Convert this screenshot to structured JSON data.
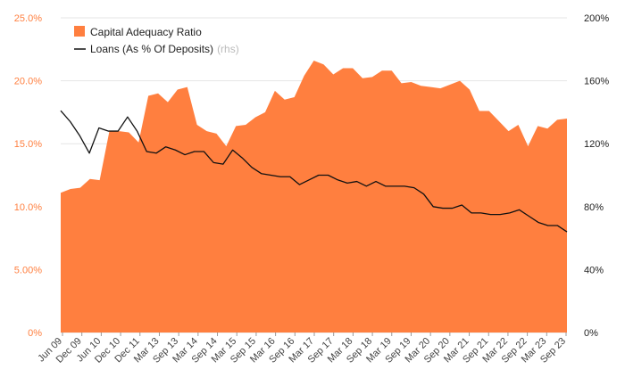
{
  "chart_data": {
    "type": "area",
    "series": [
      {
        "name": "Capital Adequacy Ratio",
        "type": "area",
        "axis": "left",
        "color": "#ff7f3f",
        "values": [
          11.1,
          11.4,
          11.5,
          12.2,
          12.1,
          16.0,
          16.0,
          15.9,
          15.1,
          18.8,
          19.0,
          18.3,
          19.3,
          19.5,
          16.5,
          16.0,
          15.8,
          14.8,
          16.4,
          16.5,
          17.1,
          17.5,
          19.2,
          18.5,
          18.7,
          20.4,
          21.6,
          21.3,
          20.5,
          21.0,
          21.0,
          20.2,
          20.3,
          20.8,
          20.8,
          19.8,
          19.9,
          19.6,
          19.5,
          19.4,
          19.7,
          20.0,
          19.3,
          17.6,
          17.6,
          16.8,
          16.0,
          16.5,
          14.8,
          16.4,
          16.2,
          16.9,
          17.0
        ]
      },
      {
        "name": "Loans (As % Of Deposits)",
        "note": "(rhs)",
        "type": "line",
        "axis": "right",
        "color": "#111111",
        "values": [
          141,
          134,
          125,
          114,
          130,
          128,
          128,
          137,
          128,
          115,
          114,
          118,
          116,
          113,
          115,
          115,
          108,
          107,
          116,
          111,
          105,
          101,
          100,
          99,
          99,
          94,
          97,
          100,
          100,
          97,
          95,
          96,
          93,
          96,
          93,
          93,
          93,
          92,
          88,
          80,
          79,
          79,
          81,
          76,
          76,
          75,
          75,
          76,
          78,
          74,
          70,
          68,
          68,
          64
        ]
      }
    ],
    "x_tick_labels": [
      "Jun 09",
      "Dec 09",
      "Jun 10",
      "Dec 10",
      "Dec 11",
      "Mar 13",
      "Sep 13",
      "Mar 14",
      "Sep 14",
      "Mar 15",
      "Sep 15",
      "Mar 16",
      "Sep 16",
      "Mar 17",
      "Sep 17",
      "Mar 18",
      "Sep 18",
      "Mar 19",
      "Sep 19",
      "Mar 20",
      "Sep 20",
      "Mar 21",
      "Sep 21",
      "Mar 22",
      "Sep 22",
      "Mar 23",
      "Sep 23"
    ],
    "y_left": {
      "ticks": [
        "25.0%",
        "20.0%",
        "15.0%",
        "10.0%",
        "5.00%",
        "0%"
      ],
      "tick_values": [
        25,
        20,
        15,
        10,
        5,
        0
      ],
      "range": [
        0,
        25
      ]
    },
    "y_right": {
      "ticks": [
        "200%",
        "160%",
        "120%",
        "80%",
        "40%",
        "0%"
      ],
      "tick_values": [
        200,
        160,
        120,
        80,
        40,
        0
      ],
      "range": [
        0,
        200
      ]
    },
    "legend_position": "top-left",
    "grid": true
  },
  "colors": {
    "accent": "#ff7f3f",
    "line": "#111111",
    "grid": "#e6e6e6"
  }
}
